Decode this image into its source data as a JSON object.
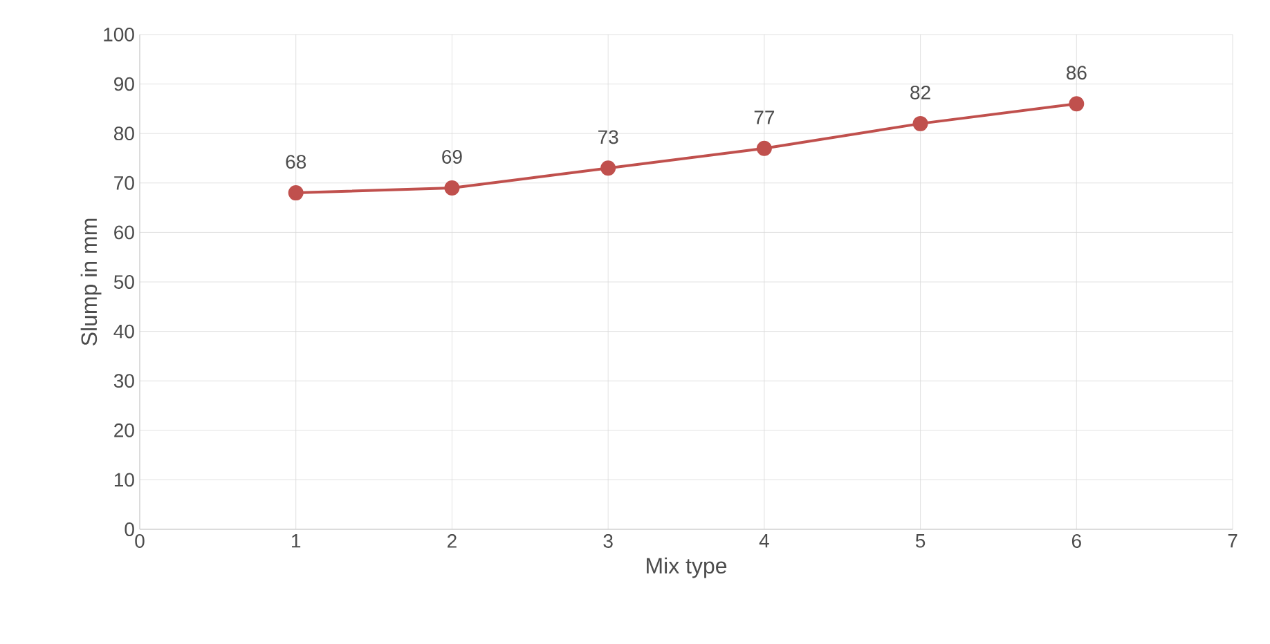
{
  "chart_data": {
    "type": "line",
    "xlabel": "Mix type",
    "ylabel": "Slump in mm",
    "x": [
      1,
      2,
      3,
      4,
      5,
      6
    ],
    "series": [
      {
        "color": "#c0504d",
        "values": [
          68,
          69,
          73,
          77,
          82,
          86
        ]
      }
    ],
    "xlim": [
      0,
      7
    ],
    "xticks": [
      0,
      1,
      2,
      3,
      4,
      5,
      6,
      7
    ],
    "ylim": [
      0,
      100
    ],
    "yticks": [
      0,
      10,
      20,
      30,
      40,
      50,
      60,
      70,
      80,
      90,
      100
    ],
    "grid": true,
    "marker": "circle",
    "line_style": "solid",
    "data_labels": true
  }
}
